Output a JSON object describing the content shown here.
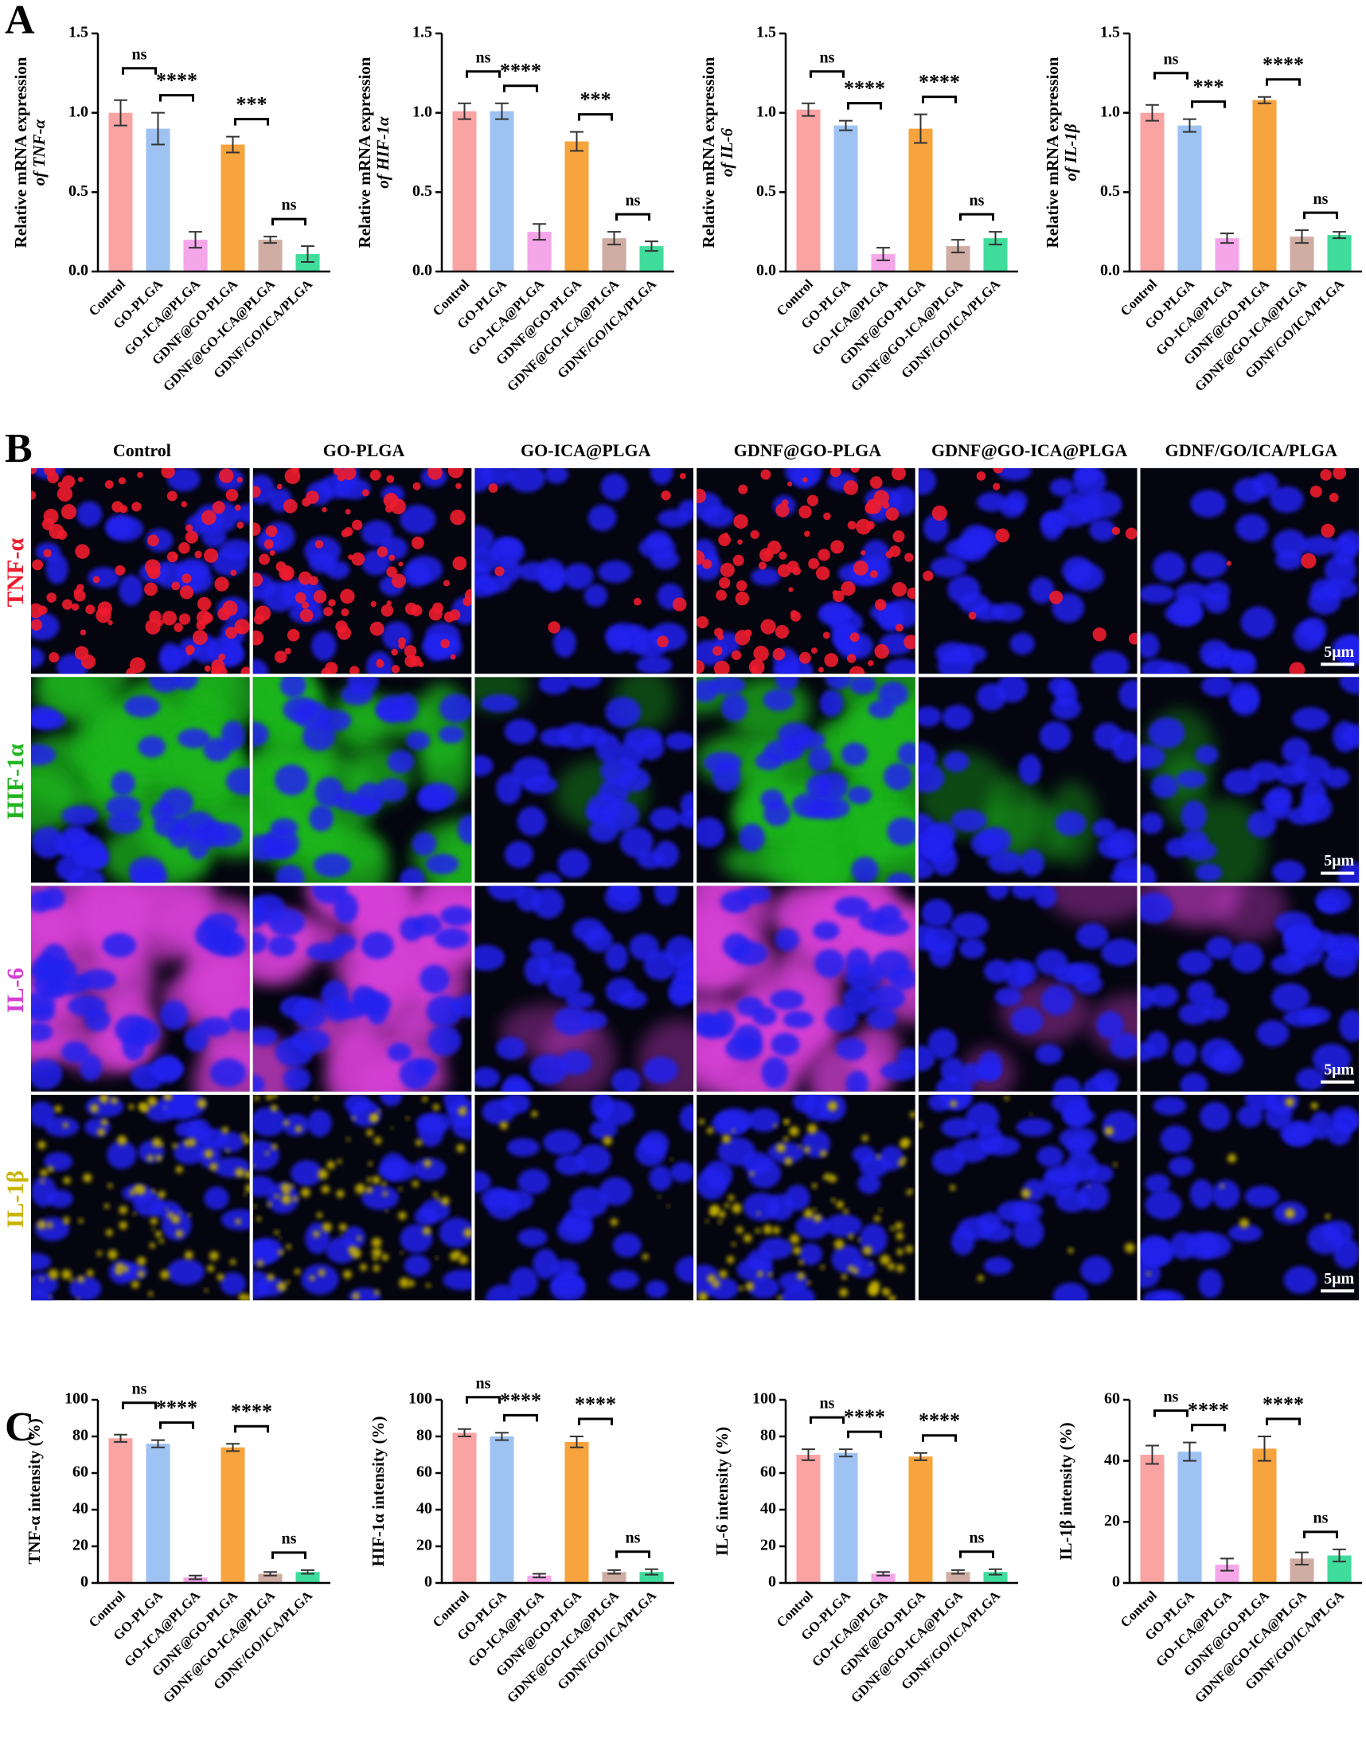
{
  "panel_labels": [
    "A",
    "B",
    "C"
  ],
  "chart_data": [
    {
      "type": "bar",
      "ylabel": [
        "Relative mRNA expression",
        "of TNF-α"
      ],
      "categories": [
        "Control",
        "GO-PLGA",
        "GO-ICA@PLGA",
        "GDNF@GO-PLGA",
        "GDNF@GO-ICA@PLGA",
        "GDNF/GO/ICA/PLGA"
      ],
      "values": [
        1.0,
        0.9,
        0.2,
        0.8,
        0.2,
        0.11
      ],
      "errors": [
        0.08,
        0.1,
        0.05,
        0.05,
        0.02,
        0.05
      ],
      "colors": [
        "#f9a3a3",
        "#9ec3f2",
        "#f5a6e8",
        "#f7a33e",
        "#cfada3",
        "#3fdc9c"
      ],
      "ylim": [
        0,
        1.5
      ],
      "yticks": [
        {
          "value": 0,
          "label": "0.0"
        },
        0.5,
        {
          "value": 1,
          "label": "1.0"
        },
        1.5
      ],
      "comparisons": [
        {
          "bars": [
            0,
            1
          ],
          "label": "ns"
        },
        {
          "bars": [
            1,
            2
          ],
          "label": "****"
        },
        {
          "bars": [
            3,
            4
          ],
          "label": "***"
        },
        {
          "bars": [
            4,
            5
          ],
          "label": "ns"
        }
      ]
    },
    {
      "type": "bar",
      "ylabel": [
        "Relative mRNA expression",
        "of HIF-1α"
      ],
      "categories": [
        "Control",
        "GO-PLGA",
        "GO-ICA@PLGA",
        "GDNF@GO-PLGA",
        "GDNF@GO-ICA@PLGA",
        "GDNF/GO/ICA/PLGA"
      ],
      "values": [
        1.01,
        1.01,
        0.25,
        0.82,
        0.21,
        0.16
      ],
      "errors": [
        0.05,
        0.05,
        0.05,
        0.06,
        0.04,
        0.03
      ],
      "colors": [
        "#f9a3a3",
        "#9ec3f2",
        "#f5a6e8",
        "#f7a33e",
        "#cfada3",
        "#3fdc9c"
      ],
      "ylim": [
        0,
        1.5
      ],
      "yticks": [
        {
          "value": 0,
          "label": "0.0"
        },
        0.5,
        {
          "value": 1,
          "label": "1.0"
        },
        1.5
      ],
      "comparisons": [
        {
          "bars": [
            0,
            1
          ],
          "label": "ns"
        },
        {
          "bars": [
            1,
            2
          ],
          "label": "****"
        },
        {
          "bars": [
            3,
            4
          ],
          "label": "***"
        },
        {
          "bars": [
            4,
            5
          ],
          "label": "ns"
        }
      ]
    },
    {
      "type": "bar",
      "ylabel": [
        "Relative mRNA expression",
        "of IL-6"
      ],
      "categories": [
        "Control",
        "GO-PLGA",
        "GO-ICA@PLGA",
        "GDNF@GO-PLGA",
        "GDNF@GO-ICA@PLGA",
        "GDNF/GO/ICA/PLGA"
      ],
      "values": [
        1.02,
        0.92,
        0.11,
        0.9,
        0.16,
        0.21
      ],
      "errors": [
        0.04,
        0.03,
        0.04,
        0.09,
        0.04,
        0.04
      ],
      "colors": [
        "#f9a3a3",
        "#9ec3f2",
        "#f5a6e8",
        "#f7a33e",
        "#cfada3",
        "#3fdc9c"
      ],
      "ylim": [
        0,
        1.5
      ],
      "yticks": [
        {
          "value": 0,
          "label": "0.0"
        },
        0.5,
        {
          "value": 1,
          "label": "1.0"
        },
        1.5
      ],
      "comparisons": [
        {
          "bars": [
            0,
            1
          ],
          "label": "ns"
        },
        {
          "bars": [
            1,
            2
          ],
          "label": "****"
        },
        {
          "bars": [
            3,
            4
          ],
          "label": "****"
        },
        {
          "bars": [
            4,
            5
          ],
          "label": "ns"
        }
      ]
    },
    {
      "type": "bar",
      "ylabel": [
        "Relative mRNA expression",
        "of IL-1β"
      ],
      "categories": [
        "Control",
        "GO-PLGA",
        "GO-ICA@PLGA",
        "GDNF@GO-PLGA",
        "GDNF@GO-ICA@PLGA",
        "GDNF/GO/ICA/PLGA"
      ],
      "values": [
        1.0,
        0.92,
        0.21,
        1.08,
        0.22,
        0.23
      ],
      "errors": [
        0.05,
        0.04,
        0.03,
        0.02,
        0.04,
        0.02
      ],
      "colors": [
        "#f9a3a3",
        "#9ec3f2",
        "#f5a6e8",
        "#f7a33e",
        "#cfada3",
        "#3fdc9c"
      ],
      "ylim": [
        0,
        1.5
      ],
      "yticks": [
        {
          "value": 0,
          "label": "0.0"
        },
        0.5,
        {
          "value": 1,
          "label": "1.0"
        },
        1.5
      ],
      "comparisons": [
        {
          "bars": [
            0,
            1
          ],
          "label": "ns"
        },
        {
          "bars": [
            1,
            2
          ],
          "label": "***"
        },
        {
          "bars": [
            3,
            4
          ],
          "label": "****"
        },
        {
          "bars": [
            4,
            5
          ],
          "label": "ns"
        }
      ]
    },
    {
      "type": "bar",
      "ylabel": [
        "TNF-α intensity (%)"
      ],
      "categories": [
        "Control",
        "GO-PLGA",
        "GO-ICA@PLGA",
        "GDNF@GO-PLGA",
        "GDNF@GO-ICA@PLGA",
        "GDNF/GO/ICA/PLGA"
      ],
      "values": [
        79,
        76,
        3,
        74,
        5,
        6
      ],
      "errors": [
        2,
        2,
        1,
        2,
        1,
        1
      ],
      "colors": [
        "#f9a3a3",
        "#9ec3f2",
        "#f5a6e8",
        "#f7a33e",
        "#cfada3",
        "#3fdc9c"
      ],
      "ylim": [
        0,
        100
      ],
      "yticks": [
        0,
        20,
        40,
        60,
        80,
        100
      ],
      "comparisons": [
        {
          "bars": [
            0,
            1
          ],
          "label": "ns"
        },
        {
          "bars": [
            1,
            2
          ],
          "label": "****"
        },
        {
          "bars": [
            3,
            4
          ],
          "label": "****"
        },
        {
          "bars": [
            4,
            5
          ],
          "label": "ns"
        }
      ]
    },
    {
      "type": "bar",
      "ylabel": [
        "HIF-1α intensity (%)"
      ],
      "categories": [
        "Control",
        "GO-PLGA",
        "GO-ICA@PLGA",
        "GDNF@GO-PLGA",
        "GDNF@GO-ICA@PLGA",
        "GDNF/GO/ICA/PLGA"
      ],
      "values": [
        82,
        80,
        4,
        77,
        6,
        6
      ],
      "errors": [
        2,
        2,
        1,
        3,
        1,
        1.5
      ],
      "colors": [
        "#f9a3a3",
        "#9ec3f2",
        "#f5a6e8",
        "#f7a33e",
        "#cfada3",
        "#3fdc9c"
      ],
      "ylim": [
        0,
        100
      ],
      "yticks": [
        0,
        20,
        40,
        60,
        80,
        100
      ],
      "comparisons": [
        {
          "bars": [
            0,
            1
          ],
          "label": "ns"
        },
        {
          "bars": [
            1,
            2
          ],
          "label": "****"
        },
        {
          "bars": [
            3,
            4
          ],
          "label": "****"
        },
        {
          "bars": [
            4,
            5
          ],
          "label": "ns"
        }
      ]
    },
    {
      "type": "bar",
      "ylabel": [
        "IL-6 intensity (%)"
      ],
      "categories": [
        "Control",
        "GO-PLGA",
        "GO-ICA@PLGA",
        "GDNF@GO-PLGA",
        "GDNF@GO-ICA@PLGA",
        "GDNF/GO/ICA/PLGA"
      ],
      "values": [
        70,
        71,
        5,
        69,
        6,
        6
      ],
      "errors": [
        3,
        2,
        1,
        2,
        1,
        1.5
      ],
      "colors": [
        "#f9a3a3",
        "#9ec3f2",
        "#f5a6e8",
        "#f7a33e",
        "#cfada3",
        "#3fdc9c"
      ],
      "ylim": [
        0,
        100
      ],
      "yticks": [
        0,
        20,
        40,
        60,
        80,
        100
      ],
      "comparisons": [
        {
          "bars": [
            0,
            1
          ],
          "label": "ns"
        },
        {
          "bars": [
            1,
            2
          ],
          "label": "****"
        },
        {
          "bars": [
            3,
            4
          ],
          "label": "****"
        },
        {
          "bars": [
            4,
            5
          ],
          "label": "ns"
        }
      ]
    },
    {
      "type": "bar",
      "ylabel": [
        "IL-1β intensity (%)"
      ],
      "categories": [
        "Control",
        "GO-PLGA",
        "GO-ICA@PLGA",
        "GDNF@GO-PLGA",
        "GDNF@GO-ICA@PLGA",
        "GDNF/GO/ICA/PLGA"
      ],
      "values": [
        42,
        43,
        6,
        44,
        8,
        9
      ],
      "errors": [
        3,
        3,
        2,
        4,
        2,
        2
      ],
      "colors": [
        "#f9a3a3",
        "#9ec3f2",
        "#f5a6e8",
        "#f7a33e",
        "#cfada3",
        "#3fdc9c"
      ],
      "ylim": [
        0,
        60
      ],
      "yticks": [
        0,
        20,
        40,
        60
      ],
      "comparisons": [
        {
          "bars": [
            0,
            1
          ],
          "label": "ns"
        },
        {
          "bars": [
            1,
            2
          ],
          "label": "****"
        },
        {
          "bars": [
            3,
            4
          ],
          "label": "****"
        },
        {
          "bars": [
            4,
            5
          ],
          "label": "ns"
        }
      ]
    }
  ],
  "microscopy": {
    "columns": [
      "Control",
      "GO-PLGA",
      "GO-ICA@PLGA",
      "GDNF@GO-PLGA",
      "GDNF@GO-ICA@PLGA",
      "GDNF/GO/ICA/PLGA"
    ],
    "rows": [
      {
        "label": "TNF-α",
        "color": "#ee1c2e"
      },
      {
        "label": "HIF-1α",
        "color": "#1fb51f"
      },
      {
        "label": "IL-6",
        "color": "#d53fd5"
      },
      {
        "label": "IL-1β",
        "color": "#c8b400"
      }
    ],
    "scale_bar": "5μm"
  }
}
